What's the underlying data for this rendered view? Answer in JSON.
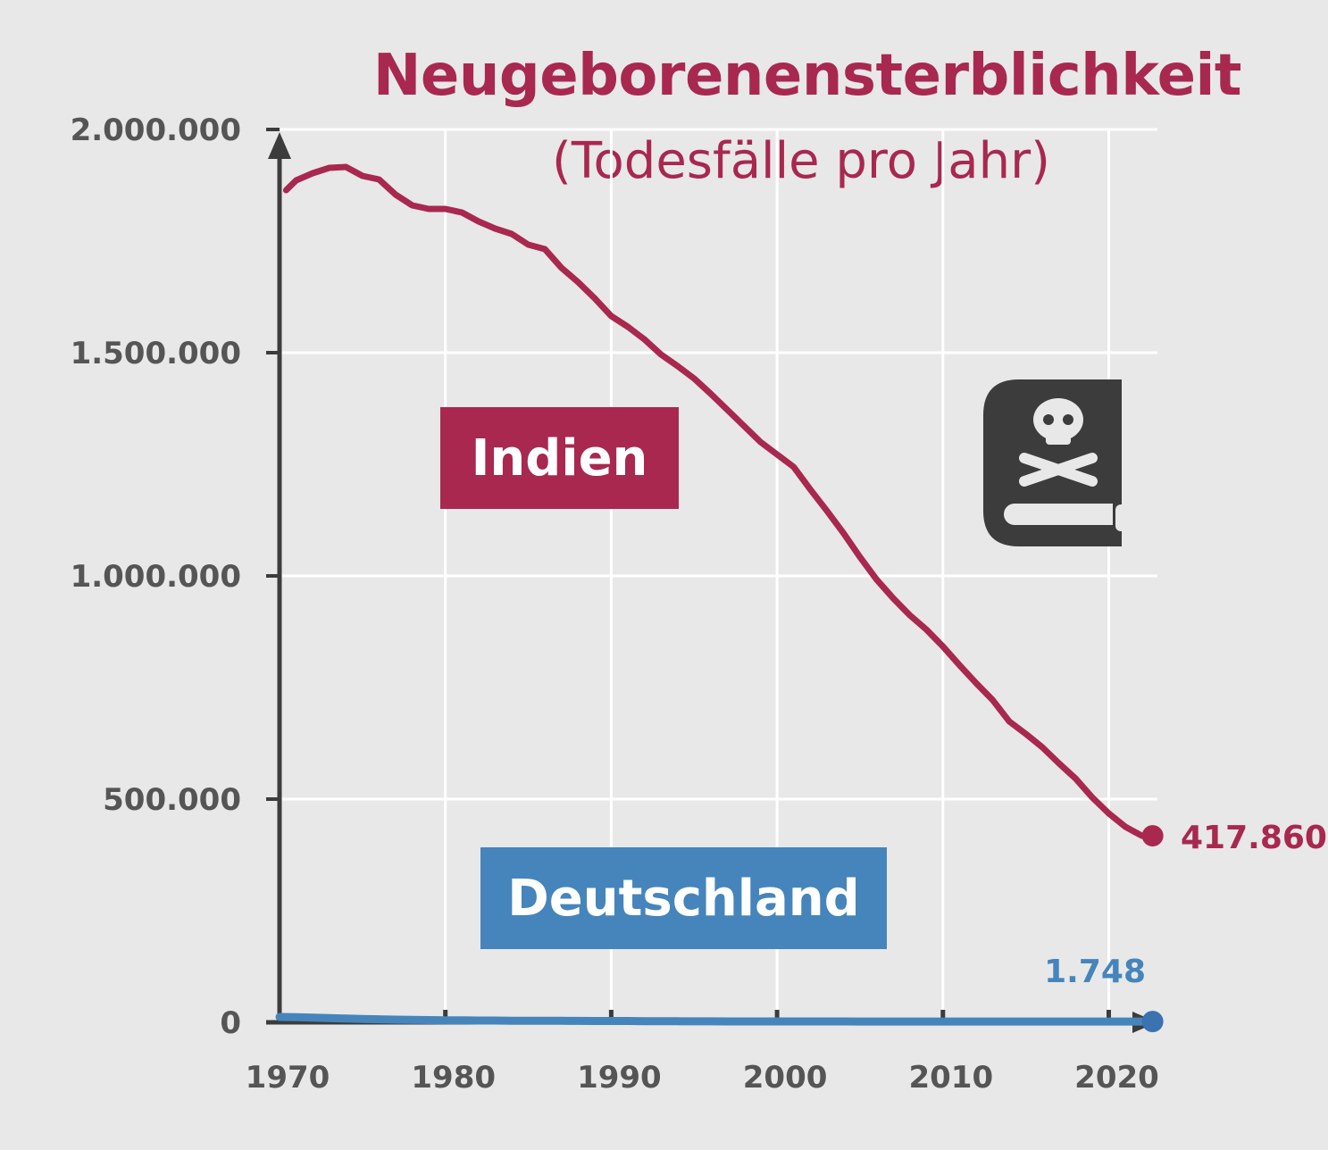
{
  "chart_data": {
    "type": "line",
    "title": "Neugeborenensterblichkeit",
    "subtitle": "(Todesfälle pro Jahr)",
    "xlabel": "",
    "ylabel": "",
    "xlim": [
      1970,
      2022
    ],
    "ylim": [
      0,
      2000000
    ],
    "x_ticks": [
      "1970",
      "1980",
      "1990",
      "2000",
      "2010",
      "2020"
    ],
    "y_ticks": [
      "0",
      "500.000",
      "1.000.000",
      "1.500.000",
      "2.000.000"
    ],
    "grid": true,
    "x": [
      1970,
      1971,
      1972,
      1973,
      1974,
      1975,
      1976,
      1977,
      1978,
      1979,
      1980,
      1981,
      1982,
      1983,
      1984,
      1985,
      1986,
      1987,
      1988,
      1989,
      1990,
      1991,
      1992,
      1993,
      1994,
      1995,
      1996,
      1997,
      1998,
      1999,
      2000,
      2001,
      2002,
      2003,
      2004,
      2005,
      2006,
      2007,
      2008,
      2009,
      2010,
      2011,
      2012,
      2013,
      2014,
      2015,
      2016,
      2017,
      2018,
      2019,
      2020,
      2021,
      2022
    ],
    "series": [
      {
        "name": "Indien",
        "color": "#a82850",
        "end_label": "417.860",
        "values": [
          1864000,
          1886000,
          1902000,
          1914000,
          1916000,
          1896000,
          1888000,
          1854000,
          1830000,
          1822000,
          1822000,
          1814000,
          1794000,
          1778000,
          1766000,
          1742000,
          1732000,
          1690000,
          1658000,
          1622000,
          1582000,
          1558000,
          1530000,
          1496000,
          1470000,
          1442000,
          1408000,
          1372000,
          1336000,
          1300000,
          1272000,
          1244000,
          1194000,
          1146000,
          1096000,
          1042000,
          992000,
          950000,
          912000,
          880000,
          842000,
          800000,
          760000,
          722000,
          674000,
          646000,
          616000,
          580000,
          546000,
          504000,
          468000,
          438000,
          417860
        ]
      },
      {
        "name": "Deutschland",
        "color": "#4585bb",
        "end_label": "1.748",
        "values": [
          12000,
          11500,
          10500,
          9500,
          8500,
          7500,
          6800,
          6000,
          5400,
          4900,
          4500,
          4300,
          4100,
          3900,
          3700,
          3500,
          3400,
          3300,
          3200,
          3100,
          3000,
          2900,
          2700,
          2500,
          2350,
          2200,
          2150,
          2100,
          2050,
          2000,
          2000,
          1980,
          1950,
          1920,
          1900,
          1880,
          1860,
          1850,
          1840,
          1830,
          1800,
          1790,
          1780,
          1770,
          1760,
          1760,
          1755,
          1750,
          1750,
          1748,
          1748,
          1748,
          1748
        ]
      }
    ]
  },
  "icon": "poison-book-skull-crossbones-icon"
}
